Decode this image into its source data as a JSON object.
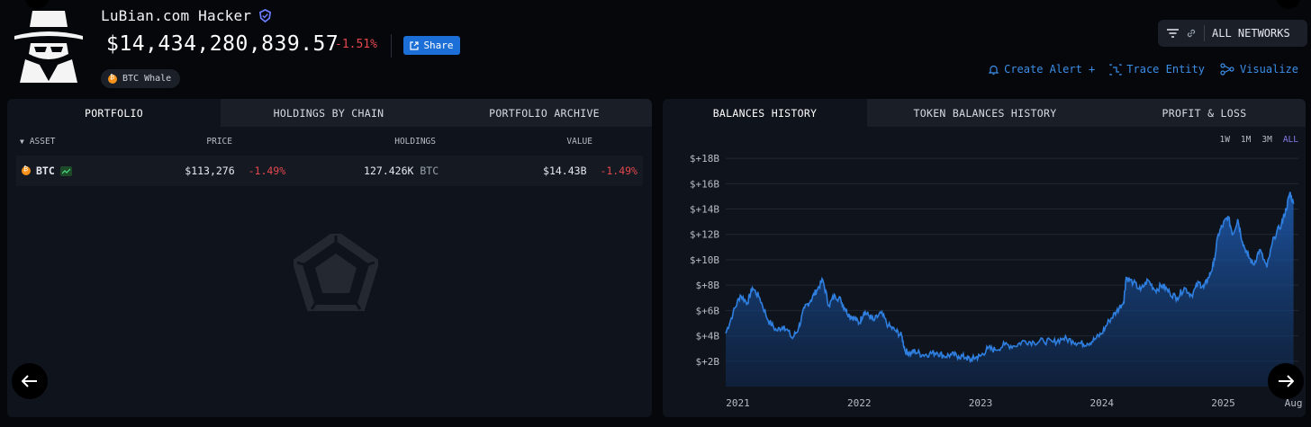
{
  "entity": {
    "name": "LuBian.com Hacker",
    "balance": "$14,434,280,839.57",
    "balance_change": "-1.51%",
    "share_label": "Share",
    "tag_label": "BTC Whale"
  },
  "networks": {
    "label": "ALL NETWORKS"
  },
  "actions": {
    "create_alert": "Create Alert +",
    "trace_entity": "Trace Entity",
    "visualize": "Visualize"
  },
  "left_panel": {
    "tabs": [
      "PORTFOLIO",
      "HOLDINGS BY CHAIN",
      "PORTFOLIO ARCHIVE"
    ],
    "columns": {
      "asset": "ASSET",
      "price": "PRICE",
      "holdings": "HOLDINGS",
      "value": "VALUE"
    },
    "rows": [
      {
        "asset": "BTC",
        "price": "$113,276",
        "price_change": "-1.49%",
        "holdings": "127.426K",
        "holdings_unit": "BTC",
        "value": "$14.43B",
        "value_change": "-1.49%"
      }
    ]
  },
  "right_panel": {
    "tabs": [
      "BALANCES HISTORY",
      "TOKEN BALANCES HISTORY",
      "PROFIT & LOSS"
    ],
    "ranges": [
      "1W",
      "1M",
      "3M",
      "ALL"
    ],
    "active_range": "ALL"
  },
  "colors": {
    "accent": "#1d6fd8",
    "negative": "#e5484d",
    "line": "#2f7fe0",
    "range_active": "#8b7cf0",
    "btc": "#f7931a"
  },
  "chart_data": {
    "type": "area",
    "title": "",
    "xlabel": "",
    "ylabel": "",
    "y_tick_labels": [
      "$+2B",
      "$+4B",
      "$+6B",
      "$+8B",
      "$+10B",
      "$+12B",
      "$+14B",
      "$+16B",
      "$+18B"
    ],
    "y_ticks": [
      2,
      4,
      6,
      8,
      10,
      12,
      14,
      16,
      18
    ],
    "ylim": [
      0,
      19
    ],
    "x_tick_labels": [
      "2021",
      "2022",
      "2023",
      "2024",
      "2025",
      "Aug"
    ],
    "x_ticks": [
      2021.0,
      2022.0,
      2023.0,
      2024.0,
      2025.0,
      2025.58
    ],
    "xlim": [
      2020.9,
      2025.62
    ],
    "grid": true,
    "series": [
      {
        "x": [
          2020.9,
          2020.96,
          2021.02,
          2021.08,
          2021.12,
          2021.18,
          2021.25,
          2021.32,
          2021.38,
          2021.45,
          2021.5,
          2021.55,
          2021.6,
          2021.65,
          2021.7,
          2021.75,
          2021.8,
          2021.85,
          2021.88,
          2021.92,
          2021.96,
          2022.0,
          2022.04,
          2022.08,
          2022.12,
          2022.18,
          2022.24,
          2022.3,
          2022.35,
          2022.38,
          2022.42,
          2022.46,
          2022.52,
          2022.58,
          2022.64,
          2022.7,
          2022.76,
          2022.82,
          2022.88,
          2022.92,
          2022.96,
          2023.0,
          2023.06,
          2023.12,
          2023.2,
          2023.28,
          2023.36,
          2023.44,
          2023.52,
          2023.6,
          2023.68,
          2023.76,
          2023.82,
          2023.88,
          2023.94,
          2024.0,
          2024.06,
          2024.12,
          2024.18,
          2024.2,
          2024.26,
          2024.32,
          2024.38,
          2024.44,
          2024.5,
          2024.56,
          2024.62,
          2024.68,
          2024.74,
          2024.8,
          2024.84,
          2024.88,
          2024.92,
          2024.96,
          2025.0,
          2025.04,
          2025.08,
          2025.12,
          2025.16,
          2025.2,
          2025.25,
          2025.3,
          2025.36,
          2025.42,
          2025.48,
          2025.52,
          2025.55,
          2025.58
        ],
        "values": [
          4.2,
          5.8,
          7.2,
          6.6,
          7.8,
          7.0,
          5.2,
          4.4,
          4.8,
          3.8,
          4.6,
          6.2,
          6.8,
          7.6,
          8.4,
          6.4,
          7.2,
          6.8,
          6.2,
          5.6,
          5.4,
          5.0,
          5.9,
          5.6,
          5.2,
          5.8,
          4.8,
          4.4,
          4.0,
          2.8,
          2.6,
          2.8,
          2.5,
          2.6,
          2.7,
          2.4,
          2.5,
          2.4,
          2.3,
          2.1,
          2.3,
          2.4,
          3.0,
          2.9,
          3.3,
          3.2,
          3.6,
          3.5,
          3.6,
          3.5,
          3.8,
          3.6,
          3.4,
          3.4,
          3.7,
          4.2,
          5.2,
          5.9,
          6.7,
          8.6,
          8.2,
          7.6,
          8.4,
          7.6,
          8.0,
          7.4,
          7.0,
          7.8,
          7.2,
          8.2,
          7.8,
          8.6,
          9.6,
          12.0,
          12.8,
          13.4,
          12.0,
          13.2,
          11.4,
          10.4,
          9.6,
          10.8,
          9.4,
          11.8,
          12.8,
          14.0,
          15.3,
          14.4
        ]
      }
    ]
  }
}
